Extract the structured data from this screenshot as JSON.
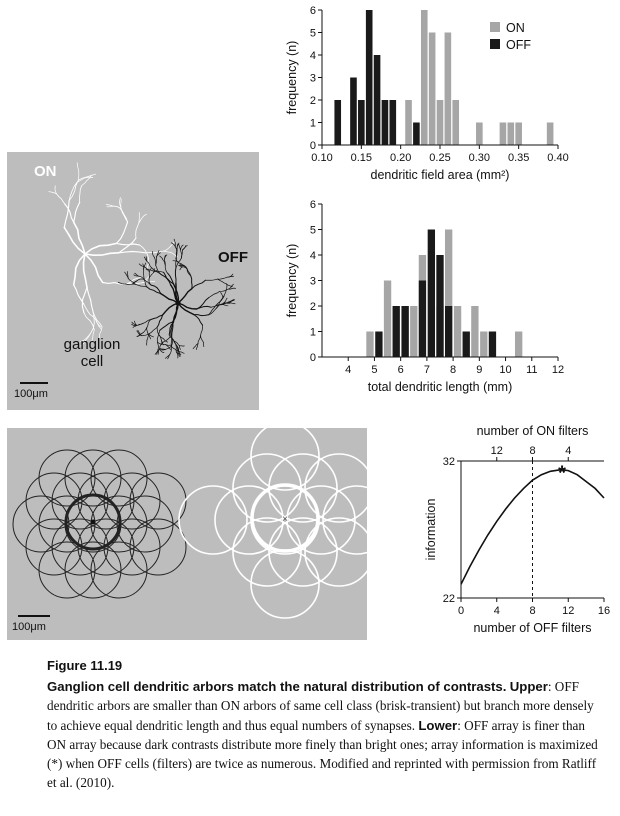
{
  "figure": {
    "number": "Figure 11.19",
    "title": "Ganglion cell dendritic arbors match the natural distribution of contrasts.",
    "upper_label": "Upper",
    "upper_text": ": OFF dendritic arbors are smaller than ON arbors of same cell class (brisk-transient) but branch more densely to achieve equal dendritic length and thus equal numbers of synapses.",
    "lower_label": "Lower",
    "lower_text": ": OFF array is finer than ON array because dark contrasts distribute more finely than bright ones; array information is maximized (*) when OFF cells (filters) are twice as numerous. Modified and reprinted with permission from Ratliff et al. (2010)."
  },
  "cell_panel": {
    "on_label": "ON",
    "off_label": "OFF",
    "cell_label_line1": "ganglion",
    "cell_label_line2": "cell",
    "scale_label": "100μm"
  },
  "mosaic_panel": {
    "scale_label": "100μm"
  },
  "chart_data": [
    {
      "type": "bar",
      "xlabel": "dendritic field area (mm²)",
      "ylabel": "frequency (n)",
      "xlim": [
        0.1,
        0.4
      ],
      "ylim": [
        0,
        6
      ],
      "xticks": [
        "0.10",
        "0.15",
        "0.20",
        "0.25",
        "0.30",
        "0.35",
        "0.40"
      ],
      "yticks": [
        "0",
        "1",
        "2",
        "3",
        "4",
        "5",
        "6"
      ],
      "bin_width": 0.01,
      "legend_position": "top-right",
      "series": [
        {
          "name": "ON",
          "color": "#a6a6a6",
          "x": [
            0.21,
            0.23,
            0.24,
            0.25,
            0.26,
            0.27,
            0.3,
            0.33,
            0.34,
            0.35,
            0.39
          ],
          "values": [
            2,
            6,
            5,
            2,
            5,
            2,
            1,
            1,
            1,
            1,
            1
          ]
        },
        {
          "name": "OFF",
          "color": "#1a1a1a",
          "x": [
            0.12,
            0.14,
            0.15,
            0.16,
            0.17,
            0.18,
            0.19,
            0.22
          ],
          "values": [
            2,
            3,
            2,
            6,
            4,
            2,
            2,
            1
          ]
        }
      ]
    },
    {
      "type": "bar",
      "xlabel": "total dendritic length (mm)",
      "ylabel": "frequency (n)",
      "xlim": [
        3,
        12
      ],
      "ylim": [
        0,
        6
      ],
      "xticks": [
        "4",
        "5",
        "6",
        "7",
        "8",
        "9",
        "10",
        "11",
        "12"
      ],
      "yticks": [
        "0",
        "1",
        "2",
        "3",
        "4",
        "5",
        "6"
      ],
      "bin_width": 0.333,
      "series": [
        {
          "name": "ON",
          "color": "#a6a6a6",
          "x": [
            4.83,
            5.5,
            6.17,
            6.5,
            6.83,
            7.5,
            7.83,
            8.17,
            8.83,
            9.17,
            10.5
          ],
          "values": [
            1,
            3,
            2,
            2,
            4,
            2,
            5,
            2,
            2,
            1,
            1
          ]
        },
        {
          "name": "OFF",
          "color": "#1a1a1a",
          "x": [
            5.17,
            5.83,
            6.17,
            6.83,
            7.17,
            7.5,
            7.83,
            8.5,
            9.5
          ],
          "values": [
            1,
            2,
            2,
            3,
            5,
            4,
            2,
            1,
            1
          ]
        }
      ]
    },
    {
      "type": "line",
      "xlabel": "number of OFF filters",
      "ylabel": "information",
      "top_axis_label": "number of ON filters",
      "xlim": [
        0,
        16
      ],
      "ylim": [
        22,
        32
      ],
      "xticks": [
        "0",
        "4",
        "8",
        "12",
        "16"
      ],
      "yticks": [
        "22",
        "32"
      ],
      "top_ticks": {
        "x": [
          4,
          8,
          12
        ],
        "labels": [
          "12",
          "8",
          "4"
        ]
      },
      "dashed_line_x": 8,
      "max_marker": {
        "x": 11.3,
        "y": 31.3,
        "label": "*"
      },
      "x": [
        0,
        1,
        2,
        3,
        4,
        5,
        6,
        7,
        8,
        9,
        10,
        11,
        11.3,
        12,
        13,
        14,
        15,
        16
      ],
      "y": [
        23.0,
        24.3,
        25.5,
        26.6,
        27.6,
        28.5,
        29.3,
        30.0,
        30.6,
        31.0,
        31.25,
        31.35,
        31.36,
        31.3,
        31.0,
        30.5,
        30.0,
        29.3
      ]
    }
  ]
}
